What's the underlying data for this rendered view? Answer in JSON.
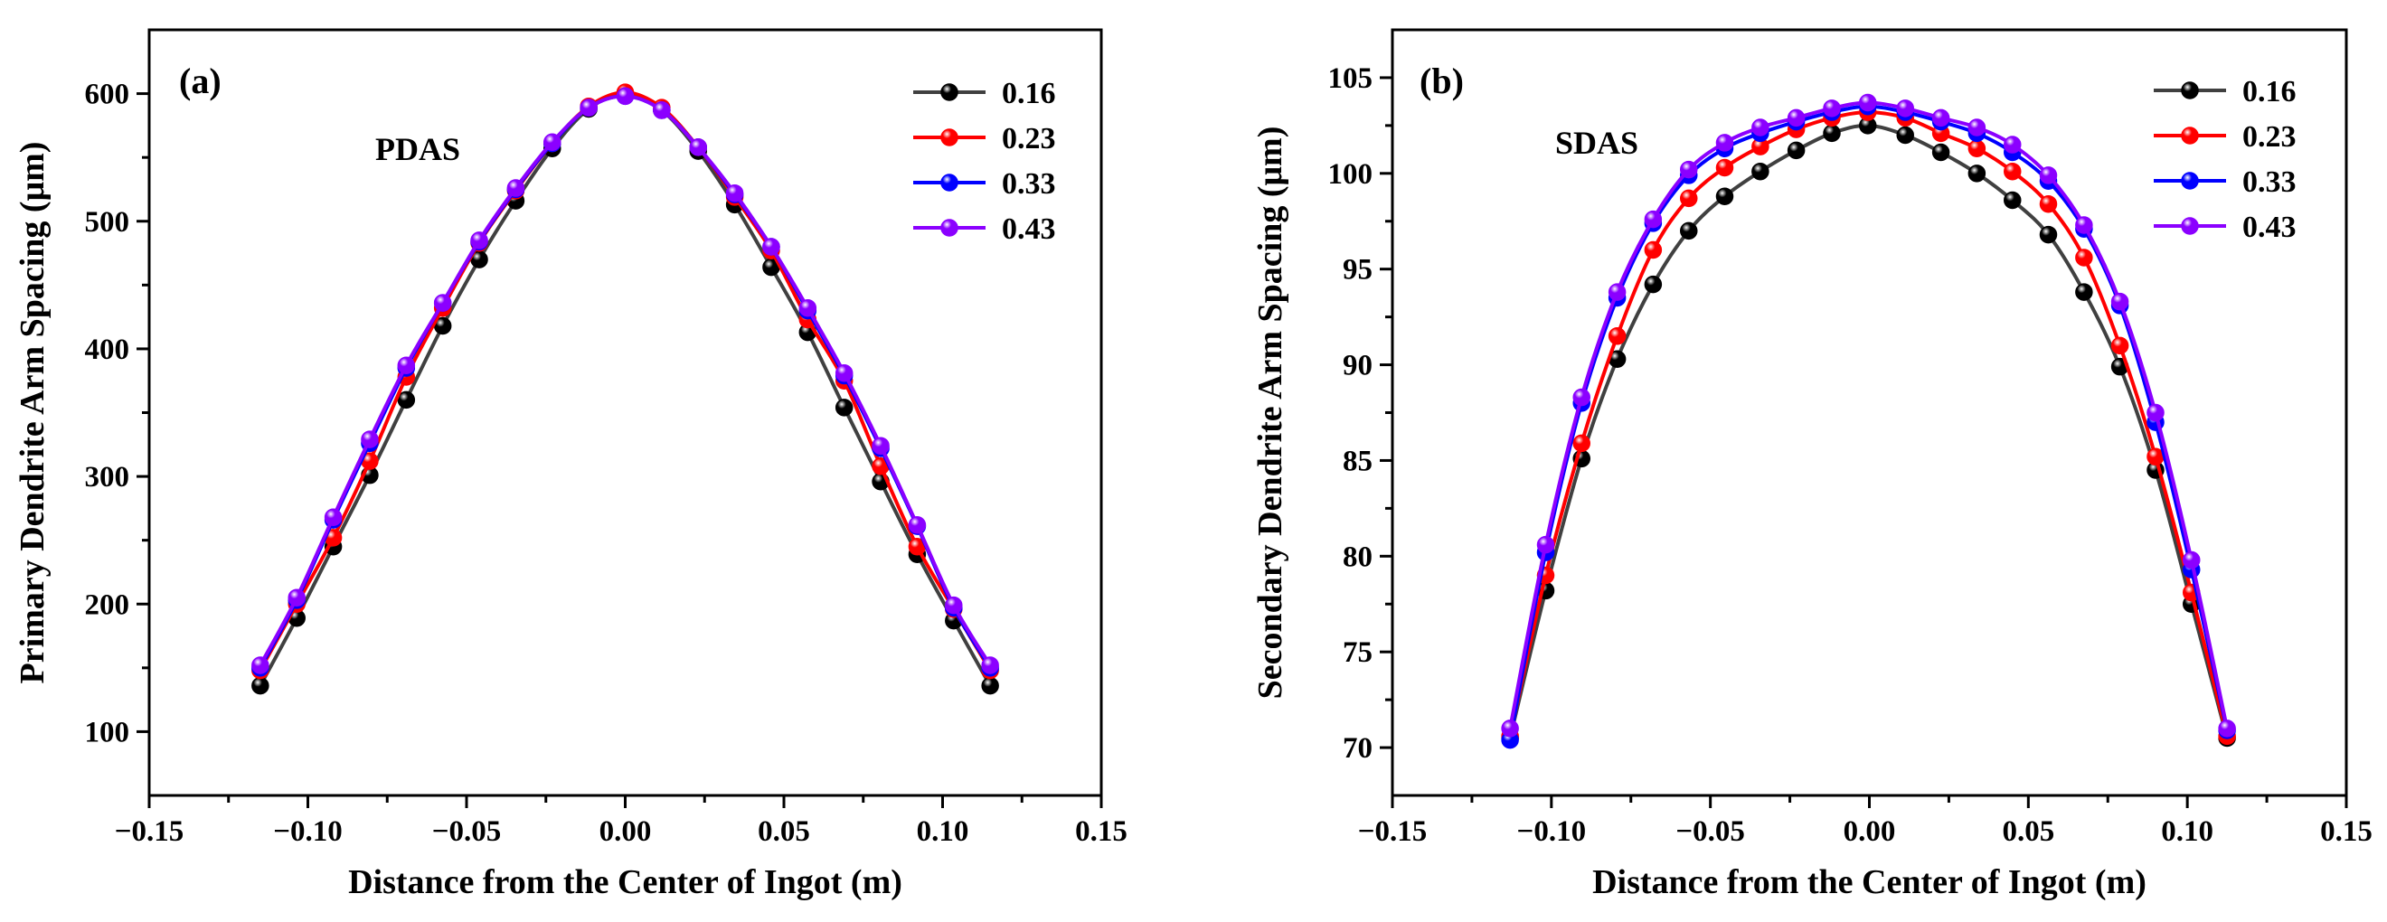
{
  "chart_data": [
    {
      "panel": "(a)",
      "type": "line",
      "annotation": "PDAS",
      "xlabel": "Distance from the Center of Ingot (m)",
      "ylabel": "Primary Dendrite Arm Spacing (μm)",
      "xlim": [
        -0.15,
        0.15
      ],
      "ylim": [
        50,
        650
      ],
      "xticks": [
        -0.15,
        -0.1,
        -0.05,
        0.0,
        0.05,
        0.1,
        0.15
      ],
      "xtick_labels": [
        "−0.15",
        "−0.10",
        "−0.05",
        "0.00",
        "0.05",
        "0.10",
        "0.15"
      ],
      "yticks": [
        100,
        200,
        300,
        400,
        500,
        600
      ],
      "ytick_labels": [
        "100",
        "200",
        "300",
        "400",
        "500",
        "600"
      ],
      "x": [
        -0.115,
        -0.1035,
        -0.092,
        -0.0805,
        -0.069,
        -0.0575,
        -0.046,
        -0.0345,
        -0.023,
        -0.0115,
        0.0,
        0.0115,
        0.023,
        0.0345,
        0.046,
        0.0575,
        0.069,
        0.0805,
        0.092,
        0.1035,
        0.115
      ],
      "legend_position": "top-right",
      "series": [
        {
          "name": "0.16",
          "color": "#000000",
          "line_color": "#404040",
          "values": [
            136,
            189,
            245,
            301,
            360,
            418,
            470,
            516,
            557,
            588,
            600,
            587,
            555,
            513,
            464,
            413,
            354,
            296,
            239,
            187,
            136
          ]
        },
        {
          "name": "0.23",
          "color": "#ff0000",
          "line_color": "#ff0000",
          "values": [
            148,
            200,
            252,
            312,
            378,
            432,
            483,
            524,
            561,
            590,
            601,
            589,
            558,
            519,
            477,
            423,
            375,
            308,
            245,
            196,
            148
          ]
        },
        {
          "name": "0.33",
          "color": "#0000ff",
          "line_color": "#0000ff",
          "values": [
            150,
            203,
            266,
            326,
            385,
            436,
            484,
            525,
            561,
            589,
            598,
            587,
            558,
            521,
            480,
            430,
            379,
            322,
            261,
            197,
            150
          ]
        },
        {
          "name": "0.43",
          "color": "#8b00ff",
          "line_color": "#8b00ff",
          "values": [
            152,
            205,
            268,
            329,
            387,
            436,
            485,
            526,
            562,
            589,
            598,
            587,
            558,
            522,
            480,
            432,
            381,
            324,
            262,
            199,
            152
          ]
        }
      ]
    },
    {
      "panel": "(b)",
      "type": "line",
      "annotation": "SDAS",
      "xlabel": "Distance from the Center of Ingot (m)",
      "ylabel": "Secondary Dendrite Arm Spacing (μm)",
      "xlim": [
        -0.15,
        0.15
      ],
      "ylim": [
        67.5,
        107.5
      ],
      "xticks": [
        -0.15,
        -0.1,
        -0.05,
        0.0,
        0.05,
        0.1,
        0.15
      ],
      "xtick_labels": [
        "−0.15",
        "−0.10",
        "−0.05",
        "0.00",
        "0.05",
        "0.10",
        "0.15"
      ],
      "yticks": [
        70,
        75,
        80,
        85,
        90,
        95,
        100,
        105
      ],
      "ytick_labels": [
        "70",
        "75",
        "80",
        "85",
        "90",
        "95",
        "100",
        "105"
      ],
      "x": [
        -0.113,
        -0.1018,
        -0.0905,
        -0.0793,
        -0.068,
        -0.0568,
        -0.0455,
        -0.0343,
        -0.023,
        -0.0118,
        -0.0005,
        0.0113,
        0.0225,
        0.0338,
        0.045,
        0.0563,
        0.0675,
        0.0788,
        0.09,
        0.1013,
        0.1125
      ],
      "legend_position": "top-right",
      "series": [
        {
          "name": "0.16",
          "color": "#000000",
          "line_color": "#404040",
          "values": [
            70.5,
            78.2,
            85.1,
            90.3,
            94.2,
            97.0,
            98.8,
            100.1,
            101.2,
            102.1,
            102.5,
            102.0,
            101.1,
            100.0,
            98.6,
            96.8,
            93.8,
            89.9,
            84.5,
            77.5,
            70.5
          ]
        },
        {
          "name": "0.23",
          "color": "#ff0000",
          "line_color": "#ff0000",
          "values": [
            70.6,
            79.0,
            85.9,
            91.5,
            96.0,
            98.7,
            100.3,
            101.4,
            102.3,
            102.9,
            103.2,
            102.9,
            102.1,
            101.3,
            100.1,
            98.4,
            95.6,
            91.0,
            85.2,
            78.1,
            70.6
          ]
        },
        {
          "name": "0.33",
          "color": "#0000ff",
          "line_color": "#0000ff",
          "values": [
            70.4,
            80.2,
            88.0,
            93.5,
            97.4,
            99.9,
            101.3,
            102.1,
            102.7,
            103.2,
            103.5,
            103.2,
            102.7,
            102.1,
            101.1,
            99.6,
            97.1,
            93.1,
            87.0,
            79.3,
            70.9
          ]
        },
        {
          "name": "0.43",
          "color": "#8b00ff",
          "line_color": "#8b00ff",
          "values": [
            71.0,
            80.6,
            88.3,
            93.8,
            97.6,
            100.2,
            101.6,
            102.4,
            102.9,
            103.4,
            103.7,
            103.4,
            102.9,
            102.4,
            101.5,
            99.9,
            97.3,
            93.3,
            87.5,
            79.8,
            71.0
          ]
        }
      ]
    }
  ]
}
